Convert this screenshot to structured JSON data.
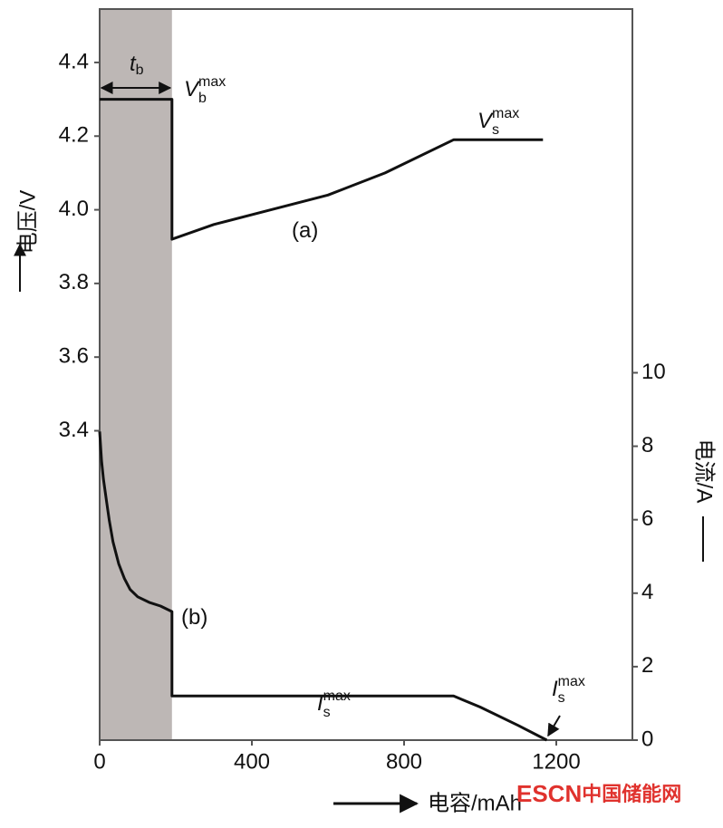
{
  "chart_data": {
    "type": "line",
    "xlabel": "电容/mAh",
    "ylabel": "电压/V",
    "y2label": "电流/A",
    "xlim": [
      0,
      1400
    ],
    "xticks": [
      0,
      400,
      800,
      1200
    ],
    "ylim": [
      2.56,
      4.545
    ],
    "yticks": [
      3.4,
      3.6,
      3.8,
      {
        "value": 4,
        "label": "4.0"
      },
      4.2,
      4.4
    ],
    "y2lim": [
      0,
      19.9
    ],
    "y2ticks": [
      0,
      2,
      4,
      6,
      8,
      10
    ],
    "shade_xrange": [
      0,
      190
    ],
    "shade_color": "#bdb7b5",
    "series": [
      {
        "color": "#111111",
        "x": [
          0,
          190,
          190,
          300,
          450,
          600,
          750,
          930,
          1165
        ],
        "values": [
          4.3,
          4.3,
          3.92,
          3.96,
          4.0,
          4.04,
          4.1,
          4.19,
          4.19
        ]
      },
      {
        "color": "#111111",
        "axis": "y2",
        "x": [
          0,
          5,
          10,
          18,
          25,
          35,
          50,
          65,
          80,
          100,
          130,
          160,
          190,
          190,
          930,
          1000,
          1100,
          1175
        ],
        "values": [
          8.4,
          7.6,
          7.1,
          6.5,
          6.0,
          5.4,
          4.8,
          4.4,
          4.1,
          3.9,
          3.75,
          3.65,
          3.5,
          1.2,
          1.2,
          0.9,
          0.4,
          0.0
        ]
      }
    ],
    "annotations": [
      {
        "text": "t",
        "sub": "b"
      },
      {
        "text": "V",
        "sub": "b",
        "sup": "max"
      },
      {
        "text": "V",
        "sub": "s",
        "sup": "max"
      },
      {
        "text": "(a)"
      },
      {
        "text": "(b)"
      },
      {
        "text": "I",
        "sub": "s",
        "sup": "max"
      },
      {
        "text": "I",
        "sub": "s",
        "sup": "max"
      }
    ],
    "watermark": {
      "a": "ESCN",
      "b": "中国储能网"
    }
  }
}
